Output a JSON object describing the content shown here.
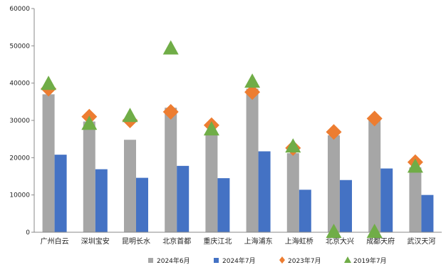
{
  "chart_data": {
    "type": "bar",
    "title": "",
    "xlabel": "",
    "ylabel": "",
    "ylim": [
      0,
      60000
    ],
    "yticks": [
      0,
      10000,
      20000,
      30000,
      40000,
      50000,
      60000
    ],
    "grid": false,
    "legend_position": "bottom",
    "categories": [
      "广州白云",
      "深圳宝安",
      "昆明长水",
      "北京首都",
      "重庆江北",
      "上海浦东",
      "上海虹桥",
      "北京大兴",
      "成都天府",
      "武汉天河"
    ],
    "series": [
      {
        "name": "2024年6月",
        "kind": "bar",
        "color": "#a6a6a6",
        "marker": "square",
        "values": [
          37000,
          29700,
          24800,
          33400,
          26300,
          38500,
          21200,
          26000,
          30200,
          17400
        ]
      },
      {
        "name": "2024年7月",
        "kind": "bar",
        "color": "#4472c4",
        "marker": "square",
        "values": [
          20800,
          16900,
          14600,
          17800,
          14500,
          21700,
          11400,
          14000,
          17100,
          10000
        ]
      },
      {
        "name": "2023年7月",
        "kind": "marker",
        "color": "#ed7d31",
        "marker": "diamond",
        "values": [
          38500,
          31000,
          30000,
          32300,
          28700,
          37600,
          22600,
          26900,
          30500,
          18800
        ]
      },
      {
        "name": "2019年7月",
        "kind": "marker",
        "color": "#70ad47",
        "marker": "triangle",
        "values": [
          39700,
          29000,
          31100,
          49200,
          27500,
          40300,
          22900,
          0,
          0,
          17500
        ]
      }
    ]
  }
}
